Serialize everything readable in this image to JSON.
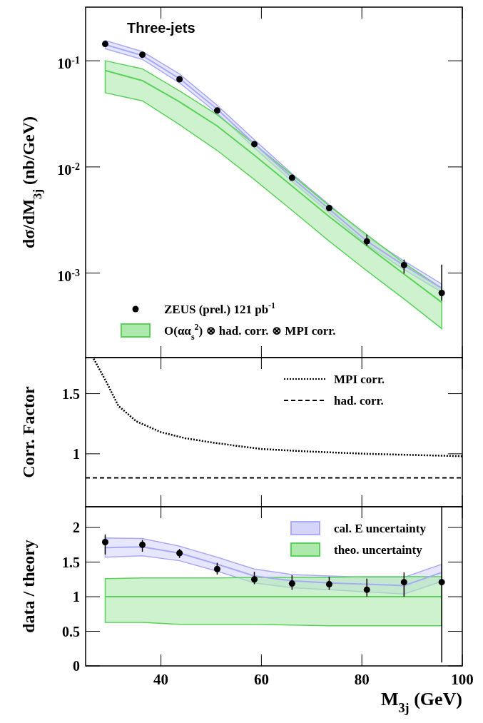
{
  "chart_data": [
    {
      "type": "scatter",
      "title": "Three-jets",
      "ylabel": "dσ/dM$_{3j}$ (nb/GeV)",
      "log": true,
      "tick_labels": "y",
      "legend": "bottom",
      "xlim": [
        25,
        100
      ],
      "ylim": [
        0.00016,
        0.32
      ],
      "xticks": [
        40,
        60,
        80,
        100
      ],
      "yticks": [
        {
          "value": 0.001,
          "label": "10$^{-3}$"
        },
        {
          "value": 0.01,
          "label": "10$^{-2}$"
        },
        {
          "value": 0.1,
          "label": "10$^{-1}$"
        }
      ],
      "series": [
        {
          "type": "line",
          "color": "#aaaaf5",
          "x": [
            28.9,
            36.3,
            43.7,
            51.2,
            58.6,
            66.1,
            73.5,
            81.0,
            88.4,
            95.9
          ],
          "values": [
            0.142,
            0.112,
            0.068,
            0.035,
            0.0165,
            0.0079,
            0.004,
            0.002,
            0.00118,
            0.00072
          ],
          "lower": [
            0.13,
            0.103,
            0.062,
            0.032,
            0.0151,
            0.0073,
            0.0037,
            0.00185,
            0.00108,
            0.00066
          ],
          "upper": [
            0.155,
            0.122,
            0.075,
            0.038,
            0.018,
            0.0086,
            0.0044,
            0.0022,
            0.0013,
            0.00079
          ]
        },
        {
          "name": "ZEUS (prel.) 121 pb$^{-1}$",
          "color": "#000000",
          "marker": "circle",
          "x": [
            28.9,
            36.3,
            43.7,
            51.2,
            58.6,
            66.1,
            73.5,
            81.0,
            88.4,
            95.9
          ],
          "values": [
            0.144,
            0.114,
            0.067,
            0.034,
            0.0164,
            0.0079,
            0.0041,
            0.00199,
            0.00119,
            0.00065
          ],
          "errors": [
            null,
            null,
            null,
            null,
            null,
            null,
            null,
            [
              0.0018,
              0.0023
            ],
            [
              0.00099,
              0.00134
            ],
            [
              0.00055,
              0.0012
            ]
          ]
        },
        {
          "type": "line",
          "name": "O(αα$_{s}$$^{2}$) ⊗ had. corr. ⊗ MPI corr.",
          "color": "#5ad25a",
          "x": [
            28.9,
            36.3,
            43.7,
            51.2,
            58.6,
            66.1,
            73.5,
            81.0,
            88.4,
            95.9
          ],
          "values": [
            0.081,
            0.065,
            0.041,
            0.0243,
            0.0129,
            0.0066,
            0.0034,
            0.0018,
            0.00098,
            0.00053
          ],
          "lower": [
            0.05,
            0.042,
            0.025,
            0.0143,
            0.0076,
            0.0039,
            0.002,
            0.00105,
            0.00057,
            0.0003
          ],
          "upper": [
            0.1,
            0.084,
            0.052,
            0.031,
            0.0164,
            0.0084,
            0.0043,
            0.0023,
            0.00124,
            0.00072
          ]
        }
      ]
    },
    {
      "type": "line",
      "ylabel": "Corr. Factor",
      "tick_labels": "y",
      "legend": "top right",
      "xlim": [
        25,
        100
      ],
      "ylim": [
        0.56,
        1.8
      ],
      "xticks": [
        40,
        60,
        80,
        100
      ],
      "yticks": [
        1,
        1.5
      ],
      "series": [
        {
          "name": "MPI corr.",
          "color": "#000000",
          "line_style": "dotted",
          "x": [
            26.6,
            29.1,
            31.5,
            35.1,
            40,
            44.8,
            50.8,
            60,
            69,
            81,
            100
          ],
          "values": [
            1.79,
            1.6,
            1.4,
            1.27,
            1.18,
            1.13,
            1.09,
            1.04,
            1.02,
            1.0,
            0.98
          ]
        },
        {
          "name": "had. corr.",
          "color": "#000000",
          "line_style": "dashed",
          "x": [
            25,
            100
          ],
          "values": [
            0.8,
            0.8
          ]
        }
      ]
    },
    {
      "type": "scatter",
      "ylabel": "data / theory",
      "xlabel": "M$_{3j}$ (GeV)",
      "legend": "top right",
      "xlim": [
        25,
        100
      ],
      "ylim": [
        0,
        2.3
      ],
      "xticks": [
        40,
        60,
        80,
        100
      ],
      "yticks": [
        0,
        0.5,
        1,
        1.5,
        2
      ],
      "series": [
        {
          "type": "line",
          "name": "cal. E uncertainty",
          "color": "#aaaaf5",
          "x": [
            28.9,
            36.3,
            43.7,
            51.2,
            58.6,
            66.1,
            73.5,
            81.0,
            88.4,
            95.9
          ],
          "values": [
            1.71,
            1.72,
            1.63,
            1.47,
            1.3,
            1.23,
            1.2,
            1.18,
            1.16,
            1.35
          ],
          "lower": [
            1.57,
            1.59,
            1.52,
            1.37,
            1.2,
            1.13,
            1.1,
            1.07,
            1.04,
            1.22
          ],
          "upper": [
            1.85,
            1.84,
            1.73,
            1.57,
            1.4,
            1.32,
            1.3,
            1.28,
            1.28,
            1.47
          ]
        },
        {
          "type": "line",
          "name": "theo. uncertainty",
          "color": "#5ad25a",
          "x": [
            28.9,
            36.3,
            43.7,
            51.2,
            58.6,
            66.1,
            73.5,
            81.0,
            88.4,
            95.9
          ],
          "values": [
            1,
            1,
            1,
            1,
            1,
            1,
            1,
            1,
            1,
            1
          ],
          "lower": [
            0.63,
            0.63,
            0.6,
            0.6,
            0.6,
            0.59,
            0.58,
            0.58,
            0.58,
            0.58
          ],
          "upper": [
            1.26,
            1.27,
            1.27,
            1.27,
            1.28,
            1.28,
            1.28,
            1.29,
            1.29,
            1.29
          ]
        },
        {
          "color": "#000000",
          "marker": "circle",
          "x": [
            28.9,
            36.3,
            43.7,
            51.2,
            58.6,
            66.1,
            73.5,
            81.0,
            88.4,
            95.9
          ],
          "values": [
            1.79,
            1.75,
            1.63,
            1.4,
            1.25,
            1.19,
            1.18,
            1.1,
            1.21,
            1.21
          ],
          "errors": [
            [
              1.61,
              1.9
            ],
            [
              1.65,
              1.82
            ],
            [
              1.56,
              1.69
            ],
            [
              1.32,
              1.49
            ],
            [
              1.18,
              1.36
            ],
            [
              1.1,
              1.31
            ],
            [
              1.1,
              1.29
            ],
            [
              1.0,
              1.26
            ],
            [
              1.0,
              1.35
            ],
            [
              0.05,
              2.3
            ]
          ]
        }
      ]
    }
  ]
}
